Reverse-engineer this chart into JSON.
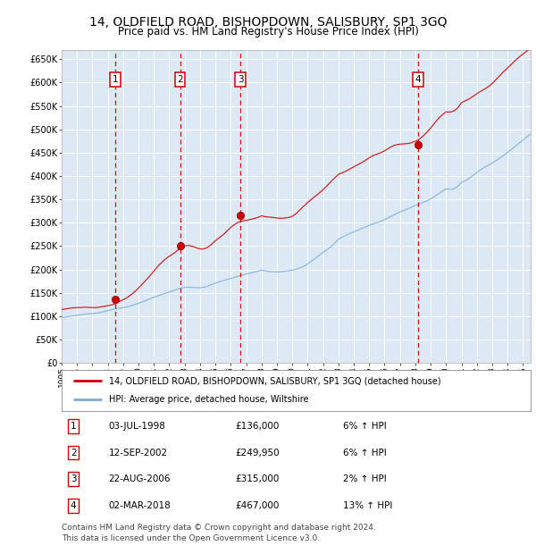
{
  "title": "14, OLDFIELD ROAD, BISHOPDOWN, SALISBURY, SP1 3GQ",
  "subtitle": "Price paid vs. HM Land Registry's House Price Index (HPI)",
  "title_fontsize": 10,
  "subtitle_fontsize": 8.5,
  "bg_color": "#dce9f5",
  "grid_color": "#ffffff",
  "ylim": [
    0,
    670000
  ],
  "yticks": [
    0,
    50000,
    100000,
    150000,
    200000,
    250000,
    300000,
    350000,
    400000,
    450000,
    500000,
    550000,
    600000,
    650000
  ],
  "ytick_labels": [
    "£0",
    "£50K",
    "£100K",
    "£150K",
    "£200K",
    "£250K",
    "£300K",
    "£350K",
    "£400K",
    "£450K",
    "£500K",
    "£550K",
    "£600K",
    "£650K"
  ],
  "xlim_start": 1995.0,
  "xlim_end": 2025.5,
  "xtick_years": [
    1995,
    1996,
    1997,
    1998,
    1999,
    2000,
    2001,
    2002,
    2003,
    2004,
    2005,
    2006,
    2007,
    2008,
    2009,
    2010,
    2011,
    2012,
    2013,
    2014,
    2015,
    2016,
    2017,
    2018,
    2019,
    2020,
    2021,
    2022,
    2023,
    2024,
    2025
  ],
  "sale_dates": [
    1998.5,
    2002.7,
    2006.64,
    2018.17
  ],
  "sale_prices": [
    136000,
    249950,
    315000,
    467000
  ],
  "sale_labels": [
    "1",
    "2",
    "3",
    "4"
  ],
  "red_line_color": "#cc0000",
  "blue_line_color": "#7aacdb",
  "sale_marker_color": "#cc0000",
  "dashed_line_color": "#cc0000",
  "legend_label_red": "14, OLDFIELD ROAD, BISHOPDOWN, SALISBURY, SP1 3GQ (detached house)",
  "legend_label_blue": "HPI: Average price, detached house, Wiltshire",
  "table_entries": [
    {
      "num": "1",
      "date": "03-JUL-1998",
      "price": "£136,000",
      "hpi": "6% ↑ HPI"
    },
    {
      "num": "2",
      "date": "12-SEP-2002",
      "price": "£249,950",
      "hpi": "6% ↑ HPI"
    },
    {
      "num": "3",
      "date": "22-AUG-2006",
      "price": "£315,000",
      "hpi": "2% ↑ HPI"
    },
    {
      "num": "4",
      "date": "02-MAR-2018",
      "price": "£467,000",
      "hpi": "13% ↑ HPI"
    }
  ],
  "footnote": "Contains HM Land Registry data © Crown copyright and database right 2024.\nThis data is licensed under the Open Government Licence v3.0.",
  "footnote_fontsize": 6.5
}
